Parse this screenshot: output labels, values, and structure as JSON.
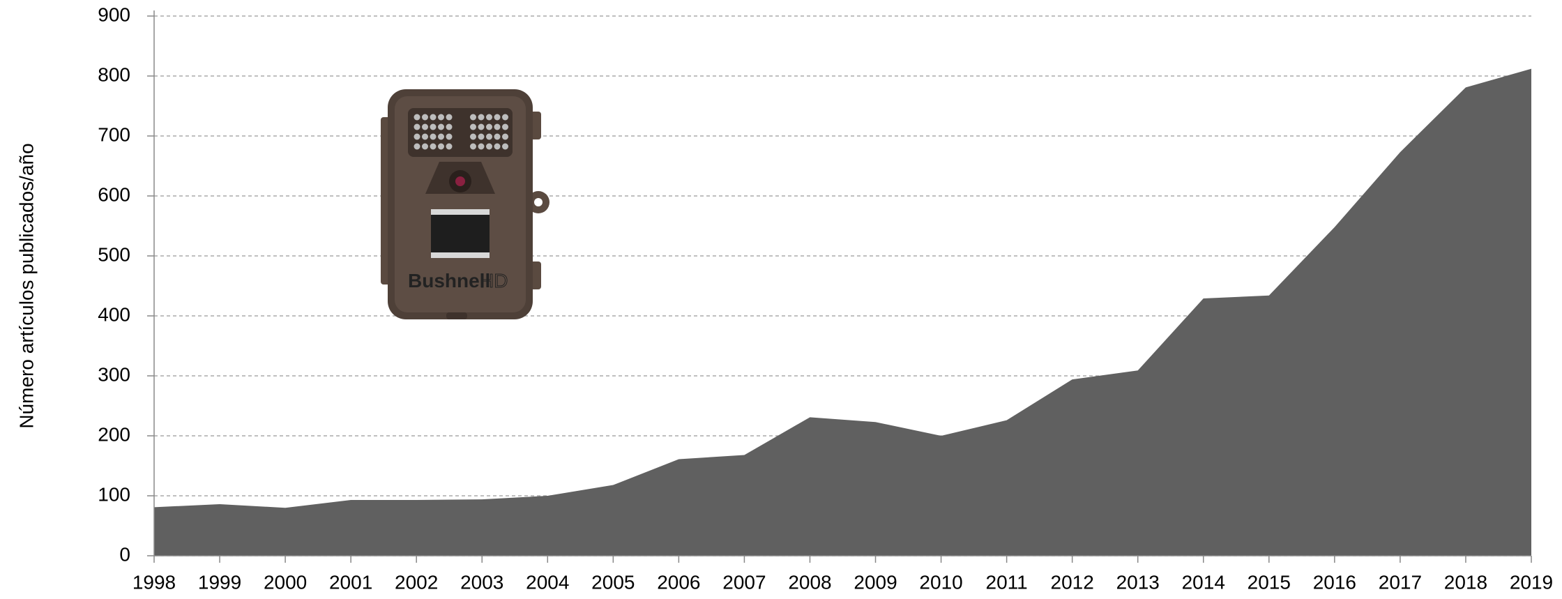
{
  "chart_data": {
    "type": "area",
    "y_label": "Número artículos publicados/año",
    "x": [
      1998,
      1999,
      2000,
      2001,
      2002,
      2003,
      2004,
      2005,
      2006,
      2007,
      2008,
      2009,
      2010,
      2011,
      2012,
      2013,
      2014,
      2015,
      2016,
      2017,
      2018,
      2019
    ],
    "values": [
      81,
      86,
      80,
      93,
      93,
      94,
      100,
      118,
      161,
      168,
      231,
      223,
      200,
      226,
      294,
      309,
      429,
      434,
      548,
      673,
      781,
      812
    ],
    "color": "#606060",
    "xlim": [
      1998,
      2019
    ],
    "xticks": [
      1998,
      1999,
      2000,
      2001,
      2002,
      2003,
      2004,
      2005,
      2006,
      2007,
      2008,
      2009,
      2010,
      2011,
      2012,
      2013,
      2014,
      2015,
      2016,
      2017,
      2018,
      2019
    ],
    "ylim": [
      0,
      900
    ],
    "yticks": [
      0,
      100,
      200,
      300,
      400,
      500,
      600,
      700,
      800,
      900
    ],
    "grid": true
  }
}
